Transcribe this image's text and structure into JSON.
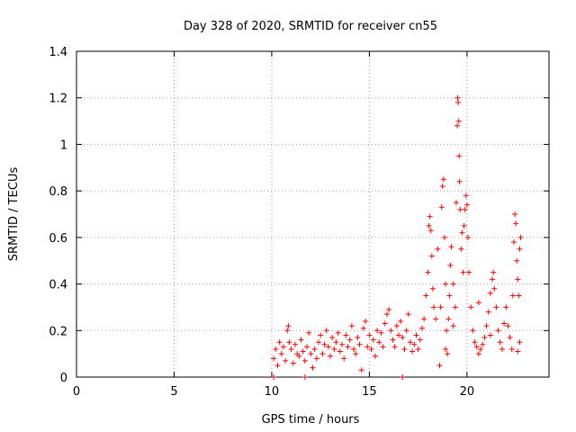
{
  "chart_data": {
    "type": "scatter",
    "title": "Day 328 of 2020, SRMTID for receiver cn55",
    "xlabel": "GPS time / hours",
    "ylabel": "SRMTID / TECUs",
    "xlim": [
      0,
      24.2
    ],
    "ylim": [
      0,
      1.4
    ],
    "xticks": [
      0,
      5,
      10,
      15,
      20
    ],
    "xtick_labels": [
      "0",
      "5",
      "10",
      "15",
      "20"
    ],
    "yticks": [
      0,
      0.2,
      0.4,
      0.6,
      0.8,
      1.0,
      1.2,
      1.4
    ],
    "ytick_labels": [
      "0",
      "0.2",
      "0.4",
      "0.6",
      "0.8",
      "1",
      "1.2",
      "1.4"
    ],
    "grid": true,
    "marker": "+",
    "color": "#ff0000",
    "series": [
      {
        "name": "SRMTID",
        "points": [
          [
            10.1,
            0.0
          ],
          [
            11.7,
            0.0
          ],
          [
            16.7,
            0.0
          ],
          [
            10.1,
            0.08
          ],
          [
            10.2,
            0.12
          ],
          [
            10.3,
            0.05
          ],
          [
            10.4,
            0.15
          ],
          [
            10.5,
            0.1
          ],
          [
            10.6,
            0.13
          ],
          [
            10.7,
            0.07
          ],
          [
            10.8,
            0.2
          ],
          [
            10.85,
            0.22
          ],
          [
            10.9,
            0.15
          ],
          [
            11.0,
            0.12
          ],
          [
            11.1,
            0.06
          ],
          [
            11.2,
            0.14
          ],
          [
            11.3,
            0.1
          ],
          [
            11.4,
            0.09
          ],
          [
            11.5,
            0.16
          ],
          [
            11.6,
            0.11
          ],
          [
            11.7,
            0.07
          ],
          [
            11.8,
            0.13
          ],
          [
            11.9,
            0.19
          ],
          [
            12.0,
            0.1
          ],
          [
            12.1,
            0.04
          ],
          [
            12.2,
            0.12
          ],
          [
            12.3,
            0.08
          ],
          [
            12.4,
            0.15
          ],
          [
            12.5,
            0.18
          ],
          [
            12.6,
            0.1
          ],
          [
            12.7,
            0.14
          ],
          [
            12.8,
            0.2
          ],
          [
            12.9,
            0.13
          ],
          [
            13.0,
            0.09
          ],
          [
            13.1,
            0.17
          ],
          [
            13.2,
            0.12
          ],
          [
            13.3,
            0.15
          ],
          [
            13.4,
            0.19
          ],
          [
            13.5,
            0.11
          ],
          [
            13.6,
            0.14
          ],
          [
            13.7,
            0.08
          ],
          [
            13.8,
            0.18
          ],
          [
            13.9,
            0.13
          ],
          [
            14.0,
            0.16
          ],
          [
            14.1,
            0.22
          ],
          [
            14.2,
            0.12
          ],
          [
            14.3,
            0.1
          ],
          [
            14.4,
            0.17
          ],
          [
            14.5,
            0.14
          ],
          [
            14.6,
            0.03
          ],
          [
            14.7,
            0.21
          ],
          [
            14.8,
            0.24
          ],
          [
            14.9,
            0.13
          ],
          [
            15.0,
            0.18
          ],
          [
            15.1,
            0.12
          ],
          [
            15.2,
            0.16
          ],
          [
            15.3,
            0.09
          ],
          [
            15.4,
            0.2
          ],
          [
            15.5,
            0.15
          ],
          [
            15.6,
            0.19
          ],
          [
            15.7,
            0.13
          ],
          [
            15.8,
            0.23
          ],
          [
            15.9,
            0.27
          ],
          [
            16.0,
            0.29
          ],
          [
            16.1,
            0.2
          ],
          [
            16.2,
            0.16
          ],
          [
            16.3,
            0.13
          ],
          [
            16.4,
            0.22
          ],
          [
            16.5,
            0.18
          ],
          [
            16.6,
            0.24
          ],
          [
            16.7,
            0.17
          ],
          [
            16.8,
            0.12
          ],
          [
            16.9,
            0.2
          ],
          [
            17.0,
            0.27
          ],
          [
            17.1,
            0.15
          ],
          [
            17.2,
            0.11
          ],
          [
            17.3,
            0.14
          ],
          [
            17.4,
            0.18
          ],
          [
            17.5,
            0.12
          ],
          [
            17.6,
            0.16
          ],
          [
            17.7,
            0.21
          ],
          [
            17.8,
            0.25
          ],
          [
            17.9,
            0.35
          ],
          [
            18.0,
            0.45
          ],
          [
            18.05,
            0.65
          ],
          [
            18.1,
            0.69
          ],
          [
            18.15,
            0.63
          ],
          [
            18.2,
            0.52
          ],
          [
            18.25,
            0.38
          ],
          [
            18.3,
            0.3
          ],
          [
            18.4,
            0.25
          ],
          [
            18.5,
            0.55
          ],
          [
            18.6,
            0.05
          ],
          [
            18.65,
            0.3
          ],
          [
            18.7,
            0.73
          ],
          [
            18.75,
            0.82
          ],
          [
            18.8,
            0.85
          ],
          [
            18.85,
            0.6
          ],
          [
            18.9,
            0.4
          ],
          [
            18.95,
            0.2
          ],
          [
            19.0,
            0.1
          ],
          [
            19.05,
            0.25
          ],
          [
            19.1,
            0.35
          ],
          [
            19.15,
            0.48
          ],
          [
            19.2,
            0.56
          ],
          [
            19.3,
            0.4
          ],
          [
            19.4,
            0.3
          ],
          [
            19.45,
            0.75
          ],
          [
            19.5,
            1.08
          ],
          [
            19.52,
            1.2
          ],
          [
            19.55,
            1.18
          ],
          [
            19.58,
            1.1
          ],
          [
            19.6,
            0.95
          ],
          [
            19.62,
            0.84
          ],
          [
            19.65,
            0.72
          ],
          [
            19.7,
            0.55
          ],
          [
            19.75,
            0.62
          ],
          [
            19.8,
            0.45
          ],
          [
            19.85,
            0.65
          ],
          [
            19.9,
            0.72
          ],
          [
            19.95,
            0.78
          ],
          [
            20.0,
            0.74
          ],
          [
            20.05,
            0.6
          ],
          [
            20.1,
            0.45
          ],
          [
            20.2,
            0.3
          ],
          [
            20.3,
            0.2
          ],
          [
            20.4,
            0.15
          ],
          [
            20.5,
            0.13
          ],
          [
            20.6,
            0.1
          ],
          [
            20.7,
            0.12
          ],
          [
            20.8,
            0.14
          ],
          [
            20.9,
            0.17
          ],
          [
            21.0,
            0.22
          ],
          [
            21.1,
            0.28
          ],
          [
            21.2,
            0.36
          ],
          [
            21.3,
            0.42
          ],
          [
            21.35,
            0.45
          ],
          [
            21.4,
            0.38
          ],
          [
            21.5,
            0.3
          ],
          [
            21.6,
            0.2
          ],
          [
            21.7,
            0.15
          ],
          [
            21.8,
            0.12
          ],
          [
            21.9,
            0.23
          ],
          [
            22.0,
            0.3
          ],
          [
            22.1,
            0.22
          ],
          [
            22.2,
            0.17
          ],
          [
            22.3,
            0.12
          ],
          [
            22.35,
            0.35
          ],
          [
            22.4,
            0.58
          ],
          [
            22.45,
            0.7
          ],
          [
            22.5,
            0.66
          ],
          [
            22.55,
            0.5
          ],
          [
            22.6,
            0.42
          ],
          [
            22.65,
            0.35
          ],
          [
            22.7,
            0.55
          ],
          [
            22.75,
            0.6
          ],
          [
            22.7,
            0.15
          ],
          [
            22.6,
            0.11
          ],
          [
            19.3,
            0.22
          ],
          [
            18.9,
            0.12
          ],
          [
            20.6,
            0.32
          ],
          [
            21.2,
            0.18
          ]
        ]
      }
    ]
  }
}
